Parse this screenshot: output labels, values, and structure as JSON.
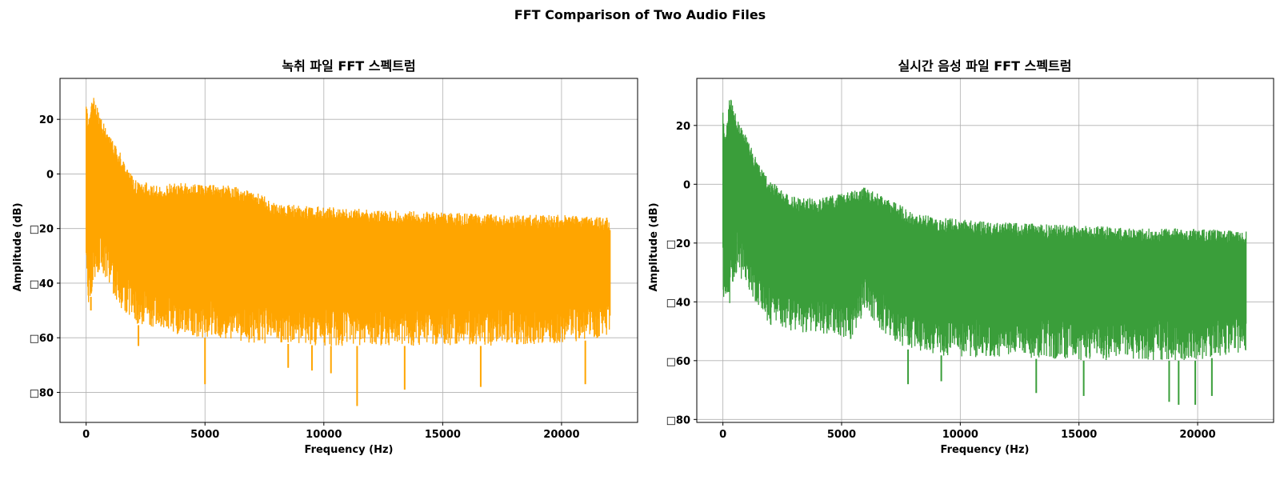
{
  "figure": {
    "suptitle": "FFT Comparison of Two Audio Files"
  },
  "chart_data": [
    {
      "type": "line",
      "title": "녹취 파일 FFT 스펙트럼",
      "xlabel": "Frequency (Hz)",
      "ylabel": "Amplitude (dB)",
      "xlim": [
        -1100,
        23200
      ],
      "ylim": [
        -91,
        35
      ],
      "xticks": [
        0,
        5000,
        10000,
        15000,
        20000
      ],
      "xtick_labels": [
        "0",
        "5000",
        "10000",
        "15000",
        "20000"
      ],
      "yticks": [
        20,
        0,
        -20,
        -40,
        -60,
        -80
      ],
      "ytick_labels": [
        "20",
        "0",
        "□20",
        "□40",
        "□60",
        "□80"
      ],
      "grid": true,
      "series": [
        {
          "color": "#FFA500",
          "x_range": [
            0,
            22050
          ],
          "envelope": {
            "freq": [
              0,
              100,
              300,
              600,
              1000,
              1500,
              2000,
              3000,
              4000,
              5000,
              6000,
              7000,
              7500,
              8000,
              10000,
              12000,
              15000,
              18000,
              20000,
              22050
            ],
            "upper": [
              26,
              20,
              29,
              21,
              14,
              7,
              -2,
              -4,
              -3,
              -4,
              -4,
              -6,
              -8,
              -11,
              -12,
              -13,
              -14,
              -15,
              -15,
              -16
            ],
            "lower": [
              -30,
              -50,
              -40,
              -35,
              -42,
              -50,
              -55,
              -57,
              -59,
              -60,
              -61,
              -62,
              -63,
              -62,
              -63,
              -63,
              -63,
              -63,
              -62,
              -60
            ]
          },
          "spikes": [
            [
              200,
              -50
            ],
            [
              2200,
              -63
            ],
            [
              5000,
              -77
            ],
            [
              8500,
              -71
            ],
            [
              9500,
              -72
            ],
            [
              10300,
              -73
            ],
            [
              11400,
              -85
            ],
            [
              13400,
              -79
            ],
            [
              16600,
              -78
            ],
            [
              21000,
              -77
            ]
          ]
        }
      ]
    },
    {
      "type": "line",
      "title": "실시간 음성 파일 FFT 스펙트럼",
      "xlabel": "Frequency (Hz)",
      "ylabel": "Amplitude (dB)",
      "xlim": [
        -1100,
        23200
      ],
      "ylim": [
        -81,
        36
      ],
      "xticks": [
        0,
        5000,
        10000,
        15000,
        20000
      ],
      "xtick_labels": [
        "0",
        "5000",
        "10000",
        "15000",
        "20000"
      ],
      "yticks": [
        20,
        0,
        -20,
        -40,
        -60,
        -80
      ],
      "ytick_labels": [
        "20",
        "0",
        "□20",
        "□40",
        "□60",
        "□80"
      ],
      "grid": true,
      "series": [
        {
          "color": "#3A9E3A",
          "x_range": [
            0,
            22050
          ],
          "envelope": {
            "freq": [
              0,
              100,
              300,
              600,
              1000,
              1500,
              2000,
              3000,
              4000,
              5000,
              5500,
              6000,
              6500,
              7000,
              7500,
              8000,
              10000,
              12000,
              15000,
              18000,
              20000,
              22050
            ],
            "upper": [
              26,
              15,
              31,
              22,
              16,
              7,
              1,
              -4,
              -5,
              -3,
              -2,
              -1,
              -3,
              -5,
              -7,
              -10,
              -12,
              -13,
              -14,
              -15,
              -15,
              -16
            ],
            "lower": [
              -35,
              -49,
              -40,
              -30,
              -35,
              -42,
              -48,
              -50,
              -51,
              -52,
              -53,
              -42,
              -48,
              -52,
              -55,
              -57,
              -59,
              -59,
              -60,
              -60,
              -60,
              -57
            ]
          },
          "spikes": [
            [
              100,
              -49
            ],
            [
              7800,
              -68
            ],
            [
              9200,
              -67
            ],
            [
              13200,
              -71
            ],
            [
              15200,
              -72
            ],
            [
              18800,
              -74
            ],
            [
              19200,
              -75
            ],
            [
              19900,
              -75
            ],
            [
              20600,
              -72
            ]
          ]
        }
      ]
    }
  ]
}
